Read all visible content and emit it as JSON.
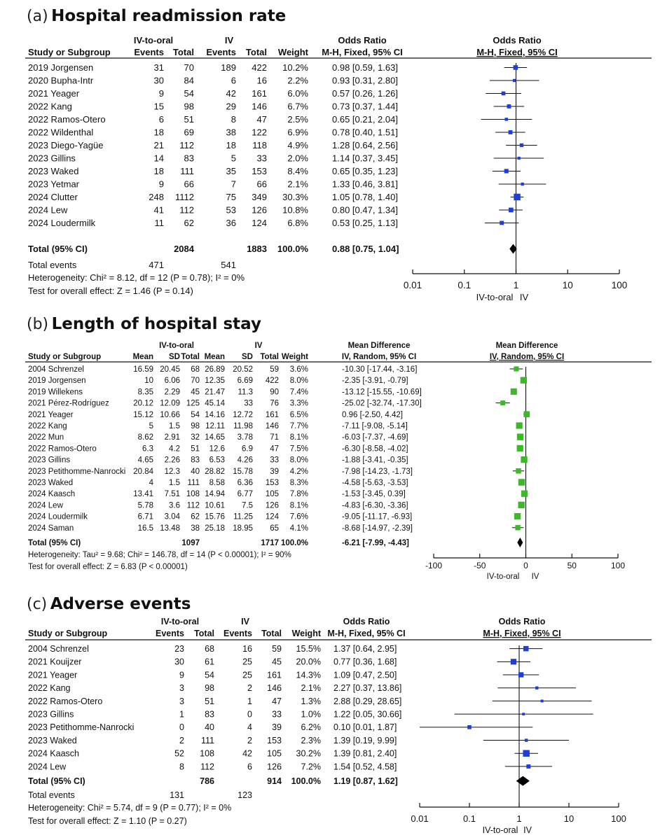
{
  "chart_data": [
    {
      "type": "forest",
      "letter": "(a)",
      "title": "Hospital readmission rate",
      "measure": "or",
      "headers": {
        "study": "Study or Subgroup",
        "group1": "IV-to-oral",
        "group2": "IV",
        "c_events": "Events",
        "c_total": "Total",
        "c_weight": "Weight",
        "effect_top": "Odds Ratio",
        "effect_sub": "M-H, Fixed, 95% CI",
        "plot_top": "Odds Ratio",
        "plot_sub": "M-H, Fixed, 95% CI"
      },
      "studies": [
        {
          "name": "2019 Jorgensen",
          "e1": "31",
          "t1": "70",
          "e2": "189",
          "t2": "422",
          "weight": "10.2%",
          "ci": "0.98 [0.59, 1.63]",
          "est": 0.98,
          "lo": 0.59,
          "hi": 1.63,
          "w": 10.2
        },
        {
          "name": "2020 Bupha-Intr",
          "e1": "30",
          "t1": "84",
          "e2": "6",
          "t2": "16",
          "weight": "2.2%",
          "ci": "0.93 [0.31, 2.80]",
          "est": 0.93,
          "lo": 0.31,
          "hi": 2.8,
          "w": 2.2
        },
        {
          "name": "2021 Yeager",
          "e1": "9",
          "t1": "54",
          "e2": "42",
          "t2": "161",
          "weight": "6.0%",
          "ci": "0.57 [0.26, 1.26]",
          "est": 0.57,
          "lo": 0.26,
          "hi": 1.26,
          "w": 6.0
        },
        {
          "name": "2022 Kang",
          "e1": "15",
          "t1": "98",
          "e2": "29",
          "t2": "146",
          "weight": "6.7%",
          "ci": "0.73 [0.37, 1.44]",
          "est": 0.73,
          "lo": 0.37,
          "hi": 1.44,
          "w": 6.7
        },
        {
          "name": "2022 Ramos-Otero",
          "e1": "6",
          "t1": "51",
          "e2": "8",
          "t2": "47",
          "weight": "2.5%",
          "ci": "0.65 [0.21, 2.04]",
          "est": 0.65,
          "lo": 0.21,
          "hi": 2.04,
          "w": 2.5
        },
        {
          "name": "2022 Wildenthal",
          "e1": "18",
          "t1": "69",
          "e2": "38",
          "t2": "122",
          "weight": "6.9%",
          "ci": "0.78 [0.40, 1.51]",
          "est": 0.78,
          "lo": 0.4,
          "hi": 1.51,
          "w": 6.9
        },
        {
          "name": "2023 Diego-Yagüe",
          "e1": "21",
          "t1": "112",
          "e2": "18",
          "t2": "118",
          "weight": "4.9%",
          "ci": "1.28 [0.64, 2.56]",
          "est": 1.28,
          "lo": 0.64,
          "hi": 2.56,
          "w": 4.9
        },
        {
          "name": "2023 Gillins",
          "e1": "14",
          "t1": "83",
          "e2": "5",
          "t2": "33",
          "weight": "2.0%",
          "ci": "1.14 [0.37, 3.45]",
          "est": 1.14,
          "lo": 0.37,
          "hi": 3.45,
          "w": 2.0
        },
        {
          "name": "2023 Waked",
          "e1": "18",
          "t1": "111",
          "e2": "35",
          "t2": "153",
          "weight": "8.4%",
          "ci": "0.65 [0.35, 1.23]",
          "est": 0.65,
          "lo": 0.35,
          "hi": 1.23,
          "w": 8.4
        },
        {
          "name": "2023 Yetmar",
          "e1": "9",
          "t1": "66",
          "e2": "7",
          "t2": "66",
          "weight": "2.1%",
          "ci": "1.33 [0.46, 3.81]",
          "est": 1.33,
          "lo": 0.46,
          "hi": 3.81,
          "w": 2.1
        },
        {
          "name": "2024 Clutter",
          "e1": "248",
          "t1": "1112",
          "e2": "75",
          "t2": "349",
          "weight": "30.3%",
          "ci": "1.05 [0.78, 1.40]",
          "est": 1.05,
          "lo": 0.78,
          "hi": 1.4,
          "w": 30.3
        },
        {
          "name": "2024 Lew",
          "e1": "41",
          "t1": "112",
          "e2": "53",
          "t2": "126",
          "weight": "10.8%",
          "ci": "0.80 [0.47, 1.34]",
          "est": 0.8,
          "lo": 0.47,
          "hi": 1.34,
          "w": 10.8
        },
        {
          "name": "2024 Loudermilk",
          "e1": "11",
          "t1": "62",
          "e2": "36",
          "t2": "124",
          "weight": "6.8%",
          "ci": "0.53 [0.25, 1.13]",
          "est": 0.53,
          "lo": 0.25,
          "hi": 1.13,
          "w": 6.8
        }
      ],
      "total": {
        "label": "Total (95% CI)",
        "t1": "2084",
        "t2": "1883",
        "weight": "100.0%",
        "ci": "0.88 [0.75, 1.04]",
        "est": 0.88,
        "lo": 0.75,
        "hi": 1.04
      },
      "total_events": {
        "label": "Total events",
        "e1": "471",
        "e2": "541"
      },
      "heterogeneity": "Heterogeneity: Chi² = 8.12, df = 12 (P = 0.78); I² = 0%",
      "overall": "Test for overall effect: Z = 1.46 (P = 0.14)",
      "axis": {
        "scale": "log",
        "range": [
          0.01,
          100
        ],
        "ticks": [
          0.01,
          0.1,
          1,
          10,
          100
        ],
        "tick_labels": [
          "0.01",
          "0.1",
          "1",
          "10",
          "100"
        ],
        "favours_left": "IV-to-oral",
        "favours_right": "IV"
      },
      "color": "#1b3fd8"
    },
    {
      "type": "forest",
      "letter": "(b)",
      "title": "Length of hospital stay",
      "measure": "md",
      "headers": {
        "study": "Study or Subgroup",
        "group1": "IV-to-oral",
        "group2": "IV",
        "c_mean": "Mean",
        "c_sd": "SD",
        "c_total": "Total",
        "c_weight": "Weight",
        "effect_top": "Mean Difference",
        "effect_sub": "IV, Random, 95% CI",
        "plot_top": "Mean Difference",
        "plot_sub": "IV, Random, 95% CI"
      },
      "studies": [
        {
          "name": "2004 Schrenzel",
          "m1": "16.59",
          "s1": "20.45",
          "t1": "68",
          "m2": "26.89",
          "s2": "20.52",
          "t2": "59",
          "weight": "3.6%",
          "ci": "-10.30 [-17.44, -3.16]",
          "est": -10.3,
          "lo": -17.44,
          "hi": -3.16,
          "w": 3.6
        },
        {
          "name": "2019 Jorgensen",
          "m1": "10",
          "s1": "6.06",
          "t1": "70",
          "m2": "12.35",
          "s2": "6.69",
          "t2": "422",
          "weight": "8.0%",
          "ci": "-2.35 [-3.91, -0.79]",
          "est": -2.35,
          "lo": -3.91,
          "hi": -0.79,
          "w": 8.0
        },
        {
          "name": "2019 Willekens",
          "m1": "8.35",
          "s1": "2.29",
          "t1": "45",
          "m2": "21.47",
          "s2": "11.3",
          "t2": "90",
          "weight": "7.4%",
          "ci": "-13.12 [-15.55, -10.69]",
          "est": -13.12,
          "lo": -15.55,
          "hi": -10.69,
          "w": 7.4
        },
        {
          "name": "2021 Pérez-Rodríguez",
          "m1": "20.12",
          "s1": "12.09",
          "t1": "125",
          "m2": "45.14",
          "s2": "33",
          "t2": "76",
          "weight": "3.3%",
          "ci": "-25.02 [-32.74, -17.30]",
          "est": -25.02,
          "lo": -32.74,
          "hi": -17.3,
          "w": 3.3
        },
        {
          "name": "2021 Yeager",
          "m1": "15.12",
          "s1": "10.66",
          "t1": "54",
          "m2": "14.16",
          "s2": "12.72",
          "t2": "161",
          "weight": "6.5%",
          "ci": "0.96 [-2.50, 4.42]",
          "est": 0.96,
          "lo": -2.5,
          "hi": 4.42,
          "w": 6.5
        },
        {
          "name": "2022 Kang",
          "m1": "5",
          "s1": "1.5",
          "t1": "98",
          "m2": "12.11",
          "s2": "11.98",
          "t2": "146",
          "weight": "7.7%",
          "ci": "-7.11 [-9.08, -5.14]",
          "est": -7.11,
          "lo": -9.08,
          "hi": -5.14,
          "w": 7.7
        },
        {
          "name": "2022 Mun",
          "m1": "8.62",
          "s1": "2.91",
          "t1": "32",
          "m2": "14.65",
          "s2": "3.78",
          "t2": "71",
          "weight": "8.1%",
          "ci": "-6.03 [-7.37, -4.69]",
          "est": -6.03,
          "lo": -7.37,
          "hi": -4.69,
          "w": 8.1
        },
        {
          "name": "2022 Ramos-Otero",
          "m1": "6.3",
          "s1": "4.2",
          "t1": "51",
          "m2": "12.6",
          "s2": "6.9",
          "t2": "47",
          "weight": "7.5%",
          "ci": "-6.30 [-8.58, -4.02]",
          "est": -6.3,
          "lo": -8.58,
          "hi": -4.02,
          "w": 7.5
        },
        {
          "name": "2023 Gillins",
          "m1": "4.65",
          "s1": "2.26",
          "t1": "83",
          "m2": "6.53",
          "s2": "4.26",
          "t2": "33",
          "weight": "8.0%",
          "ci": "-1.88 [-3.41, -0.35]",
          "est": -1.88,
          "lo": -3.41,
          "hi": -0.35,
          "w": 8.0
        },
        {
          "name": "2023 Petithomme-Nanrocki",
          "m1": "20.84",
          "s1": "12.3",
          "t1": "40",
          "m2": "28.82",
          "s2": "15.78",
          "t2": "39",
          "weight": "4.2%",
          "ci": "-7.98 [-14.23, -1.73]",
          "est": -7.98,
          "lo": -14.23,
          "hi": -1.73,
          "w": 4.2
        },
        {
          "name": "2023 Waked",
          "m1": "4",
          "s1": "1.5",
          "t1": "111",
          "m2": "8.58",
          "s2": "6.36",
          "t2": "153",
          "weight": "8.3%",
          "ci": "-4.58 [-5.63, -3.53]",
          "est": -4.58,
          "lo": -5.63,
          "hi": -3.53,
          "w": 8.3
        },
        {
          "name": "2024 Kaasch",
          "m1": "13.41",
          "s1": "7.51",
          "t1": "108",
          "m2": "14.94",
          "s2": "6.77",
          "t2": "105",
          "weight": "7.8%",
          "ci": "-1.53 [-3.45, 0.39]",
          "est": -1.53,
          "lo": -3.45,
          "hi": 0.39,
          "w": 7.8
        },
        {
          "name": "2024 Lew",
          "m1": "5.78",
          "s1": "3.6",
          "t1": "112",
          "m2": "10.61",
          "s2": "7.5",
          "t2": "126",
          "weight": "8.1%",
          "ci": "-4.83 [-6.30, -3.36]",
          "est": -4.83,
          "lo": -6.3,
          "hi": -3.36,
          "w": 8.1
        },
        {
          "name": "2024 Loudermilk",
          "m1": "6.71",
          "s1": "3.04",
          "t1": "62",
          "m2": "15.76",
          "s2": "11.25",
          "t2": "124",
          "weight": "7.6%",
          "ci": "-9.05 [-11.17, -6.93]",
          "est": -9.05,
          "lo": -11.17,
          "hi": -6.93,
          "w": 7.6
        },
        {
          "name": "2024 Saman",
          "m1": "16.5",
          "s1": "13.48",
          "t1": "38",
          "m2": "25.18",
          "s2": "18.95",
          "t2": "65",
          "weight": "4.1%",
          "ci": "-8.68 [-14.97, -2.39]",
          "est": -8.68,
          "lo": -14.97,
          "hi": -2.39,
          "w": 4.1
        }
      ],
      "total": {
        "label": "Total (95% CI)",
        "t1": "1097",
        "t2": "1717",
        "weight": "100.0%",
        "ci": "-6.21 [-7.99, -4.43]",
        "est": -6.21,
        "lo": -7.99,
        "hi": -4.43
      },
      "heterogeneity": "Heterogeneity: Tau² = 9.68; Chi² = 146.78, df = 14 (P < 0.00001); I² = 90%",
      "overall": "Test for overall effect: Z = 6.83 (P < 0.00001)",
      "axis": {
        "scale": "linear",
        "range": [
          -100,
          100
        ],
        "ticks": [
          -100,
          -50,
          0,
          50,
          100
        ],
        "tick_labels": [
          "-100",
          "-50",
          "0",
          "50",
          "100"
        ],
        "favours_left": "IV-to-oral",
        "favours_right": "IV"
      },
      "color": "#3cb829"
    },
    {
      "type": "forest",
      "letter": "(c)",
      "title": "Adverse events",
      "measure": "or",
      "headers": {
        "study": "Study or Subgroup",
        "group1": "IV-to-oral",
        "group2": "IV",
        "c_events": "Events",
        "c_total": "Total",
        "c_weight": "Weight",
        "effect_top": "Odds Ratio",
        "effect_sub": "M-H, Fixed, 95% CI",
        "plot_top": "Odds Ratio",
        "plot_sub": "M-H, Fixed, 95% CI"
      },
      "studies": [
        {
          "name": "2004 Schrenzel",
          "e1": "23",
          "t1": "68",
          "e2": "16",
          "t2": "59",
          "weight": "15.5%",
          "ci": "1.37 [0.64, 2.95]",
          "est": 1.37,
          "lo": 0.64,
          "hi": 2.95,
          "w": 15.5
        },
        {
          "name": "2021 Kouijzer",
          "e1": "30",
          "t1": "61",
          "e2": "25",
          "t2": "45",
          "weight": "20.0%",
          "ci": "0.77 [0.36, 1.68]",
          "est": 0.77,
          "lo": 0.36,
          "hi": 1.68,
          "w": 20.0
        },
        {
          "name": "2021 Yeager",
          "e1": "9",
          "t1": "54",
          "e2": "25",
          "t2": "161",
          "weight": "14.3%",
          "ci": "1.09 [0.47, 2.50]",
          "est": 1.09,
          "lo": 0.47,
          "hi": 2.5,
          "w": 14.3
        },
        {
          "name": "2022 Kang",
          "e1": "3",
          "t1": "98",
          "e2": "2",
          "t2": "146",
          "weight": "2.1%",
          "ci": "2.27 [0.37, 13.86]",
          "est": 2.27,
          "lo": 0.37,
          "hi": 13.86,
          "w": 2.1
        },
        {
          "name": "2022 Ramos-Otero",
          "e1": "3",
          "t1": "51",
          "e2": "1",
          "t2": "47",
          "weight": "1.3%",
          "ci": "2.88 [0.29, 28.65]",
          "est": 2.88,
          "lo": 0.29,
          "hi": 28.65,
          "w": 1.3
        },
        {
          "name": "2023 Gillins",
          "e1": "1",
          "t1": "83",
          "e2": "0",
          "t2": "33",
          "weight": "1.0%",
          "ci": "1.22 [0.05, 30.66]",
          "est": 1.22,
          "lo": 0.05,
          "hi": 30.66,
          "w": 1.0
        },
        {
          "name": "2023 Petithomme-Nanrocki",
          "e1": "0",
          "t1": "40",
          "e2": "4",
          "t2": "39",
          "weight": "6.2%",
          "ci": "0.10 [0.01, 1.87]",
          "est": 0.1,
          "lo": 0.01,
          "hi": 1.87,
          "w": 6.2
        },
        {
          "name": "2023 Waked",
          "e1": "2",
          "t1": "111",
          "e2": "2",
          "t2": "153",
          "weight": "2.3%",
          "ci": "1.39 [0.19, 9.99]",
          "est": 1.39,
          "lo": 0.19,
          "hi": 9.99,
          "w": 2.3
        },
        {
          "name": "2024 Kaasch",
          "e1": "52",
          "t1": "108",
          "e2": "42",
          "t2": "105",
          "weight": "30.2%",
          "ci": "1.39 [0.81, 2.40]",
          "est": 1.39,
          "lo": 0.81,
          "hi": 2.4,
          "w": 30.2
        },
        {
          "name": "2024 Lew",
          "e1": "8",
          "t1": "112",
          "e2": "6",
          "t2": "126",
          "weight": "7.2%",
          "ci": "1.54 [0.52, 4.58]",
          "est": 1.54,
          "lo": 0.52,
          "hi": 4.58,
          "w": 7.2
        }
      ],
      "total": {
        "label": "Total (95% CI)",
        "t1": "786",
        "t2": "914",
        "weight": "100.0%",
        "ci": "1.19 [0.87, 1.62]",
        "est": 1.19,
        "lo": 0.87,
        "hi": 1.62
      },
      "total_events": {
        "label": "Total events",
        "e1": "131",
        "e2": "123"
      },
      "heterogeneity": "Heterogeneity: Chi² = 5.74, df = 9 (P = 0.77); I² = 0%",
      "overall": "Test for overall effect: Z = 1.10 (P = 0.27)",
      "axis": {
        "scale": "log",
        "range": [
          0.01,
          100
        ],
        "ticks": [
          0.01,
          0.1,
          1,
          10,
          100
        ],
        "tick_labels": [
          "0.01",
          "0.1",
          "1",
          "10",
          "100"
        ],
        "favours_left": "IV-to-oral",
        "favours_right": "IV"
      },
      "color": "#1b3fd8"
    }
  ]
}
